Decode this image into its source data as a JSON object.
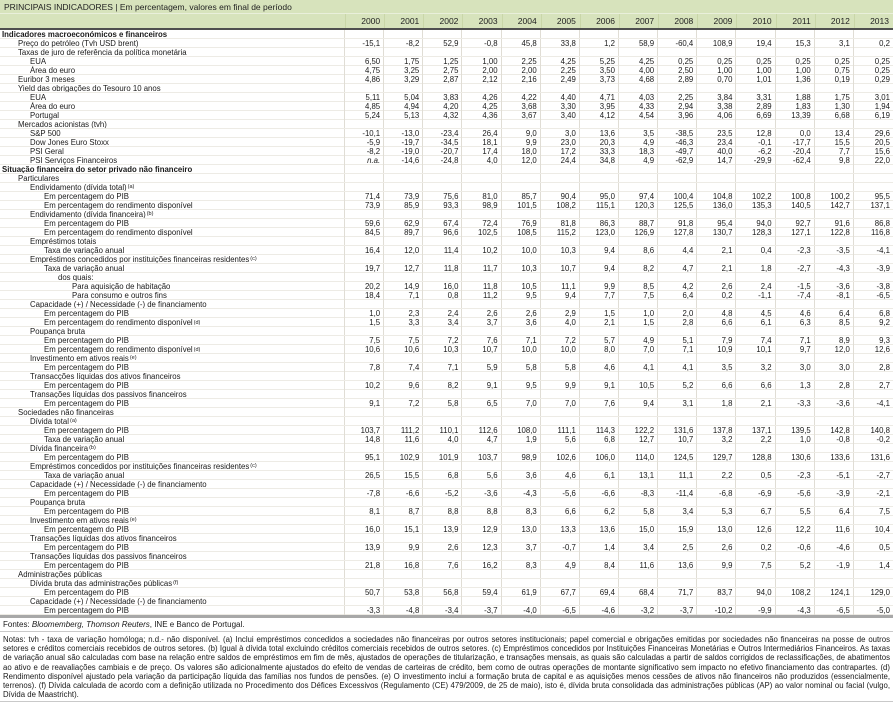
{
  "colors": {
    "header_green": "#d7e3bc",
    "grid_line": "#e0ddd5",
    "heavy_rule": "#a8a8a8"
  },
  "table": {
    "title": "PRINCIPAIS INDICADORES | Em percentagem, valores em final de período",
    "years": [
      "2000",
      "2001",
      "2002",
      "2003",
      "2004",
      "2005",
      "2006",
      "2007",
      "2008",
      "2009",
      "2010",
      "2011",
      "2012",
      "2013"
    ],
    "rows": [
      {
        "label": "Indicadores macroeconómicos e financeiros",
        "indent": 0,
        "bold": true,
        "values": []
      },
      {
        "label": "Preço do petróleo (Tvh USD brent)",
        "indent": 1,
        "values": [
          "-15,1",
          "-8,2",
          "52,9",
          "-0,8",
          "45,8",
          "33,8",
          "1,2",
          "58,9",
          "-60,4",
          "108,9",
          "19,4",
          "15,3",
          "3,1",
          "0,2"
        ]
      },
      {
        "label": "Taxas de juro de referência da política monetária",
        "indent": 1,
        "values": []
      },
      {
        "label": "EUA",
        "indent": 2,
        "values": [
          "6,50",
          "1,75",
          "1,25",
          "1,00",
          "2,25",
          "4,25",
          "5,25",
          "4,25",
          "0,25",
          "0,25",
          "0,25",
          "0,25",
          "0,25",
          "0,25"
        ]
      },
      {
        "label": "Área do euro",
        "indent": 2,
        "values": [
          "4,75",
          "3,25",
          "2,75",
          "2,00",
          "2,00",
          "2,25",
          "3,50",
          "4,00",
          "2,50",
          "1,00",
          "1,00",
          "1,00",
          "0,75",
          "0,25"
        ]
      },
      {
        "label": "Euribor 3 meses",
        "indent": 1,
        "values": [
          "4,86",
          "3,29",
          "2,87",
          "2,12",
          "2,16",
          "2,49",
          "3,73",
          "4,68",
          "2,89",
          "0,70",
          "1,01",
          "1,36",
          "0,19",
          "0,29"
        ]
      },
      {
        "label": "Yield das obrigações do Tesouro 10 anos",
        "indent": 1,
        "values": []
      },
      {
        "label": "EUA",
        "indent": 2,
        "values": [
          "5,11",
          "5,04",
          "3,83",
          "4,26",
          "4,22",
          "4,40",
          "4,71",
          "4,03",
          "2,25",
          "3,84",
          "3,31",
          "1,88",
          "1,75",
          "3,01"
        ]
      },
      {
        "label": "Área do euro",
        "indent": 2,
        "values": [
          "4,85",
          "4,94",
          "4,20",
          "4,25",
          "3,68",
          "3,30",
          "3,95",
          "4,33",
          "2,94",
          "3,38",
          "2,89",
          "1,83",
          "1,30",
          "1,94"
        ]
      },
      {
        "label": "Portugal",
        "indent": 2,
        "values": [
          "5,24",
          "5,13",
          "4,32",
          "4,36",
          "3,67",
          "3,40",
          "4,12",
          "4,54",
          "3,96",
          "4,06",
          "6,69",
          "13,39",
          "6,68",
          "6,19"
        ]
      },
      {
        "label": "Mercados acionistas (tvh)",
        "indent": 1,
        "values": []
      },
      {
        "label": "S&P 500",
        "indent": 2,
        "values": [
          "-10,1",
          "-13,0",
          "-23,4",
          "26,4",
          "9,0",
          "3,0",
          "13,6",
          "3,5",
          "-38,5",
          "23,5",
          "12,8",
          "0,0",
          "13,4",
          "29,6"
        ]
      },
      {
        "label": "Dow Jones Euro Stoxx",
        "indent": 2,
        "values": [
          "-5,9",
          "-19,7",
          "-34,5",
          "18,1",
          "9,9",
          "23,0",
          "20,3",
          "4,9",
          "-46,3",
          "23,4",
          "-0,1",
          "-17,7",
          "15,5",
          "20,5"
        ]
      },
      {
        "label": "PSI Geral",
        "indent": 2,
        "values": [
          "-8,2",
          "-19,0",
          "-20,7",
          "17,4",
          "18,0",
          "17,2",
          "33,3",
          "18,3",
          "-49,7",
          "40,0",
          "-6,2",
          "-20,4",
          "7,7",
          "15,6"
        ]
      },
      {
        "label": "PSI Serviços Financeiros",
        "indent": 2,
        "values": [
          "n.a.",
          "-14,6",
          "-24,8",
          "4,0",
          "12,0",
          "24,4",
          "34,8",
          "4,9",
          "-62,9",
          "14,7",
          "-29,9",
          "-62,4",
          "9,8",
          "22,0"
        ]
      },
      {
        "label": "Situação financeira do setor privado não financeiro",
        "indent": 0,
        "bold": true,
        "values": []
      },
      {
        "label": "Particulares",
        "indent": 1,
        "values": []
      },
      {
        "label": "Endividamento (dívida total)",
        "sup": "(a)",
        "indent": 2,
        "values": []
      },
      {
        "label": "Em percentagem do PIB",
        "indent": 3,
        "values": [
          "71,4",
          "73,9",
          "75,6",
          "81,0",
          "85,7",
          "90,4",
          "95,0",
          "97,4",
          "100,4",
          "104,8",
          "102,2",
          "100,8",
          "100,2",
          "95,5"
        ]
      },
      {
        "label": "Em percentagem do rendimento disponível",
        "indent": 3,
        "values": [
          "73,9",
          "85,9",
          "93,3",
          "98,9",
          "101,5",
          "108,2",
          "115,1",
          "120,3",
          "125,5",
          "136,0",
          "135,3",
          "140,5",
          "142,7",
          "137,1"
        ]
      },
      {
        "label": "Endividamento (dívida financeira)",
        "sup": "(b)",
        "indent": 2,
        "values": []
      },
      {
        "label": "Em percentagem do PIB",
        "indent": 3,
        "values": [
          "59,6",
          "62,9",
          "67,4",
          "72,4",
          "76,9",
          "81,8",
          "86,3",
          "88,7",
          "91,8",
          "95,4",
          "94,0",
          "92,7",
          "91,6",
          "86,8"
        ]
      },
      {
        "label": "Em percentagem do rendimento disponível",
        "indent": 3,
        "values": [
          "84,5",
          "89,7",
          "96,6",
          "102,5",
          "108,5",
          "115,2",
          "123,0",
          "126,9",
          "127,8",
          "130,7",
          "128,3",
          "127,1",
          "122,8",
          "116,8"
        ]
      },
      {
        "label": "Empréstimos totais",
        "indent": 2,
        "values": []
      },
      {
        "label": "Taxa de variação anual",
        "indent": 3,
        "values": [
          "16,4",
          "12,0",
          "11,4",
          "10,2",
          "10,0",
          "10,3",
          "9,4",
          "8,6",
          "4,4",
          "2,1",
          "0,4",
          "-2,3",
          "-3,5",
          "-4,1"
        ]
      },
      {
        "label": "Empréstimos concedidos por instituições financeiras residentes",
        "sup": "(c)",
        "indent": 2,
        "values": []
      },
      {
        "label": "Taxa de variação anual",
        "indent": 3,
        "values": [
          "19,7",
          "12,7",
          "11,8",
          "11,7",
          "10,3",
          "10,7",
          "9,4",
          "8,2",
          "4,7",
          "2,1",
          "1,8",
          "-2,7",
          "-4,3",
          "-3,9"
        ]
      },
      {
        "label": "dos quais:",
        "indent": 4,
        "values": []
      },
      {
        "label": "Para aquisição de habitação",
        "indent": 5,
        "values": [
          "20,2",
          "14,9",
          "16,0",
          "11,8",
          "10,5",
          "11,1",
          "9,9",
          "8,5",
          "4,2",
          "2,6",
          "2,4",
          "-1,5",
          "-3,6",
          "-3,8"
        ]
      },
      {
        "label": "Para consumo e outros fins",
        "indent": 5,
        "values": [
          "18,4",
          "7,1",
          "0,8",
          "11,2",
          "9,5",
          "9,4",
          "7,7",
          "7,5",
          "6,4",
          "0,2",
          "-1,1",
          "-7,4",
          "-8,1",
          "-6,5"
        ]
      },
      {
        "label": "Capacidade (+) / Necessidade (-) de financiamento",
        "indent": 2,
        "values": []
      },
      {
        "label": "Em percentagem do PIB",
        "indent": 3,
        "values": [
          "1,0",
          "2,3",
          "2,4",
          "2,6",
          "2,6",
          "2,9",
          "1,5",
          "1,0",
          "2,0",
          "4,8",
          "4,5",
          "4,6",
          "6,4",
          "6,8"
        ]
      },
      {
        "label": "Em percentagem do rendimento disponível",
        "sup": "(d)",
        "indent": 3,
        "values": [
          "1,5",
          "3,3",
          "3,4",
          "3,7",
          "3,6",
          "4,0",
          "2,1",
          "1,5",
          "2,8",
          "6,6",
          "6,1",
          "6,3",
          "8,5",
          "9,2"
        ]
      },
      {
        "label": "Poupança bruta",
        "indent": 2,
        "values": []
      },
      {
        "label": "Em percentagem do PIB",
        "indent": 3,
        "values": [
          "7,5",
          "7,5",
          "7,2",
          "7,6",
          "7,1",
          "7,2",
          "5,7",
          "4,9",
          "5,1",
          "7,9",
          "7,4",
          "7,1",
          "8,9",
          "9,3"
        ]
      },
      {
        "label": "Em percentagem do rendimento disponível",
        "sup": "(d)",
        "indent": 3,
        "values": [
          "10,6",
          "10,6",
          "10,3",
          "10,7",
          "10,0",
          "10,0",
          "8,0",
          "7,0",
          "7,1",
          "10,9",
          "10,1",
          "9,7",
          "12,0",
          "12,6"
        ]
      },
      {
        "label": "Investimento em ativos reais",
        "sup": "(e)",
        "indent": 2,
        "values": []
      },
      {
        "label": "Em percentagem do PIB",
        "indent": 3,
        "values": [
          "7,8",
          "7,4",
          "7,1",
          "5,9",
          "5,8",
          "5,8",
          "4,6",
          "4,1",
          "4,1",
          "3,5",
          "3,2",
          "3,0",
          "3,0",
          "2,8"
        ]
      },
      {
        "label": "Transacções líquidas dos ativos financeiros",
        "indent": 2,
        "values": []
      },
      {
        "label": "Em percentagem do PIB",
        "indent": 3,
        "values": [
          "10,2",
          "9,6",
          "8,2",
          "9,1",
          "9,5",
          "9,9",
          "9,1",
          "10,5",
          "5,2",
          "6,6",
          "6,6",
          "1,3",
          "2,8",
          "2,7"
        ]
      },
      {
        "label": "Transações líquidas dos passivos financeiros",
        "indent": 2,
        "values": []
      },
      {
        "label": "Em percentagem do PIB",
        "indent": 3,
        "values": [
          "9,1",
          "7,2",
          "5,8",
          "6,5",
          "7,0",
          "7,0",
          "7,6",
          "9,4",
          "3,1",
          "1,8",
          "2,1",
          "-3,3",
          "-3,6",
          "-4,1"
        ]
      },
      {
        "label": "Sociedades não financeiras",
        "indent": 1,
        "values": []
      },
      {
        "label": "Dívida total",
        "sup": "(a)",
        "indent": 2,
        "values": []
      },
      {
        "label": "Em percentagem do PIB",
        "indent": 3,
        "values": [
          "103,7",
          "111,2",
          "110,1",
          "112,6",
          "108,0",
          "111,1",
          "114,3",
          "122,2",
          "131,6",
          "137,8",
          "137,1",
          "139,5",
          "142,8",
          "140,8"
        ]
      },
      {
        "label": "Taxa de variação anual",
        "indent": 3,
        "values": [
          "14,8",
          "11,6",
          "4,0",
          "4,7",
          "1,9",
          "5,6",
          "6,8",
          "12,7",
          "10,7",
          "3,2",
          "2,2",
          "1,0",
          "-0,8",
          "-0,2"
        ]
      },
      {
        "label": "Dívida financeira",
        "sup": "(b)",
        "indent": 2,
        "values": []
      },
      {
        "label": "Em percentagem do PIB",
        "indent": 3,
        "values": [
          "95,1",
          "102,9",
          "101,9",
          "103,7",
          "98,9",
          "102,6",
          "106,0",
          "114,0",
          "124,5",
          "129,7",
          "128,8",
          "130,6",
          "133,6",
          "131,6"
        ]
      },
      {
        "label": "Empréstimos concedidos por instituições financeiras residentes",
        "sup": "(c)",
        "indent": 2,
        "values": []
      },
      {
        "label": "Taxa de variação anual",
        "indent": 3,
        "values": [
          "26,5",
          "15,5",
          "6,8",
          "5,6",
          "3,6",
          "4,6",
          "6,1",
          "13,1",
          "11,1",
          "2,2",
          "0,5",
          "-2,3",
          "-5,1",
          "-2,7"
        ]
      },
      {
        "label": "Capacidade (+) / Necessidade (-) de financiamento",
        "indent": 2,
        "values": []
      },
      {
        "label": "Em percentagem do PIB",
        "indent": 3,
        "values": [
          "-7,8",
          "-6,6",
          "-5,2",
          "-3,6",
          "-4,3",
          "-5,6",
          "-6,6",
          "-8,3",
          "-11,4",
          "-6,8",
          "-6,9",
          "-5,6",
          "-3,9",
          "-2,1"
        ]
      },
      {
        "label": "Poupança bruta",
        "indent": 2,
        "values": []
      },
      {
        "label": "Em percentagem do PIB",
        "indent": 3,
        "values": [
          "8,1",
          "8,7",
          "8,8",
          "8,8",
          "8,3",
          "6,6",
          "6,2",
          "5,8",
          "3,4",
          "5,3",
          "6,7",
          "5,5",
          "6,4",
          "7,5"
        ]
      },
      {
        "label": "Investimento em ativos reais",
        "sup": "(e)",
        "indent": 2,
        "values": []
      },
      {
        "label": "Em percentagem do PIB",
        "indent": 3,
        "values": [
          "16,0",
          "15,1",
          "13,9",
          "12,9",
          "13,0",
          "13,3",
          "13,6",
          "15,0",
          "15,9",
          "13,0",
          "12,6",
          "12,2",
          "11,6",
          "10,4"
        ]
      },
      {
        "label": "Transações líquidas dos ativos financeiros",
        "indent": 2,
        "values": []
      },
      {
        "label": "Em percentagem do PIB",
        "indent": 3,
        "values": [
          "13,9",
          "9,9",
          "2,6",
          "12,3",
          "3,7",
          "-0,7",
          "1,4",
          "3,4",
          "2,5",
          "2,6",
          "0,2",
          "-0,6",
          "-4,6",
          "0,5"
        ]
      },
      {
        "label": "Transações líquidas dos passivos financeiros",
        "indent": 2,
        "values": []
      },
      {
        "label": "Em percentagem do PIB",
        "indent": 3,
        "values": [
          "21,8",
          "16,8",
          "7,6",
          "16,2",
          "8,3",
          "4,9",
          "8,4",
          "11,6",
          "13,6",
          "9,9",
          "7,5",
          "5,2",
          "-1,9",
          "1,4"
        ]
      },
      {
        "label": "Administrações públicas",
        "indent": 1,
        "values": []
      },
      {
        "label": "Dívida bruta das administrações públicas",
        "sup": "(f)",
        "indent": 2,
        "values": []
      },
      {
        "label": "Em percentagem do PIB",
        "indent": 3,
        "values": [
          "50,7",
          "53,8",
          "56,8",
          "59,4",
          "61,9",
          "67,7",
          "69,4",
          "68,4",
          "71,7",
          "83,7",
          "94,0",
          "108,2",
          "124,1",
          "129,0"
        ]
      },
      {
        "label": "Capacidade (+) / Necessidade (-) de financiamento",
        "indent": 2,
        "values": []
      },
      {
        "label": "Em percentagem do PIB",
        "indent": 3,
        "values": [
          "-3,3",
          "-4,8",
          "-3,4",
          "-3,7",
          "-4,0",
          "-6,5",
          "-4,6",
          "-3,2",
          "-3,7",
          "-10,2",
          "-9,9",
          "-4,3",
          "-6,5",
          "-5,0"
        ]
      }
    ]
  },
  "footer": {
    "fontes_label": "Fontes:",
    "fontes_sources": "Bloomemberg, Thomson Reuters",
    "fontes_rest": ", INE e Banco de Portugal.",
    "notes": "Notas: tvh - taxa de variação homóloga; n.d.- não disponível. (a) Inclui empréstimos concedidos a sociedades não financeiras por outros setores institucionais; papel comercial e obrigações emitidas por sociedades não financeiras na posse de outros setores e créditos comerciais recebidos de outros setores. (b) Igual à dívida total excluindo créditos comerciais recebidos de outros setores. (c) Empréstimos concedidos por Instituições Financeiras Monetárias e Outros Intermediários Financeiros. As taxas de variação anual são calculadas com base na relação entre saldos de empréstimos em fim de mês, ajustados de operações de titularização, e transações mensais, as quais são calculadas a partir de saldos corrigidos de reclassificações, de abatimentos ao ativo e de reavaliações cambiais e de preço. Os valores são adicionalmente ajustados do efeito de vendas de carteiras de crédito, bem como de outras operações de montante significativo sem impacto no efetivo financiamento das contrapartes. (d) Rendimento disponível ajustado pela variação da participação líquida das famílias nos fundos de pensões. (e) O investimento inclui a formação bruta de capital e as aquisições menos cessões de ativos não financeiros não produzidos (essencialmente, terrenos). (f) Dívida calculada de acordo com a definição utilizada no Procedimento dos Défices Excessivos (Regulamento (CE) 479/2009, de 25 de maio), isto é, dívida bruta consolidada das administrações públicas (AP) ao valor nominal ou facial (vulgo, Dívida de Maastricht)."
  }
}
